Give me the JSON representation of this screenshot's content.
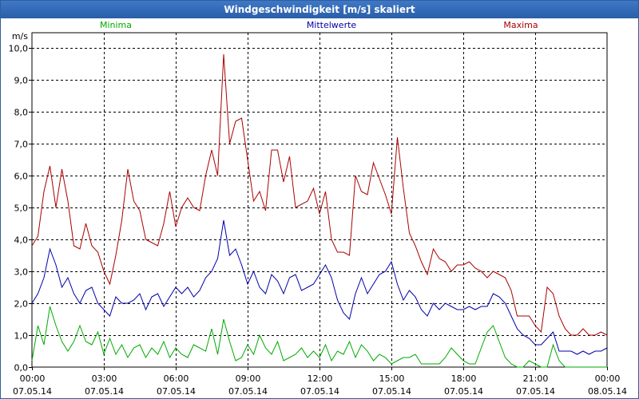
{
  "window": {
    "title": "Windgeschwindigkeit [m/s] skaliert"
  },
  "chart_data": {
    "type": "line",
    "title": "Windgeschwindigkeit [m/s] skaliert",
    "ylabel": "m/s",
    "ylim": [
      0,
      10
    ],
    "yticks": [
      "0,0",
      "1,0",
      "2,0",
      "3,0",
      "4,0",
      "5,0",
      "6,0",
      "7,0",
      "8,0",
      "9,0",
      "10,0"
    ],
    "xticks": [
      {
        "time": "00:00",
        "date": "07.05.14"
      },
      {
        "time": "03:00",
        "date": "07.05.14"
      },
      {
        "time": "06:00",
        "date": "07.05.14"
      },
      {
        "time": "09:00",
        "date": "07.05.14"
      },
      {
        "time": "12:00",
        "date": "07.05.14"
      },
      {
        "time": "15:00",
        "date": "07.05.14"
      },
      {
        "time": "18:00",
        "date": "07.05.14"
      },
      {
        "time": "21:00",
        "date": "07.05.14"
      },
      {
        "time": "00:00",
        "date": "08.05.14"
      }
    ],
    "x_hours": [
      0,
      0.25,
      0.5,
      0.75,
      1,
      1.25,
      1.5,
      1.75,
      2,
      2.25,
      2.5,
      2.75,
      3,
      3.25,
      3.5,
      3.75,
      4,
      4.25,
      4.5,
      4.75,
      5,
      5.25,
      5.5,
      5.75,
      6,
      6.25,
      6.5,
      6.75,
      7,
      7.25,
      7.5,
      7.75,
      8,
      8.25,
      8.5,
      8.75,
      9,
      9.25,
      9.5,
      9.75,
      10,
      10.25,
      10.5,
      10.75,
      11,
      11.25,
      11.5,
      11.75,
      12,
      12.25,
      12.5,
      12.75,
      13,
      13.25,
      13.5,
      13.75,
      14,
      14.25,
      14.5,
      14.75,
      15,
      15.25,
      15.5,
      15.75,
      16,
      16.25,
      16.5,
      16.75,
      17,
      17.25,
      17.5,
      17.75,
      18,
      18.25,
      18.5,
      18.75,
      19,
      19.25,
      19.5,
      19.75,
      20,
      20.25,
      20.5,
      20.75,
      21,
      21.25,
      21.5,
      21.75,
      22,
      22.25,
      22.5,
      22.75,
      23,
      23.25,
      23.5,
      23.75,
      24
    ],
    "series": [
      {
        "name": "Minima",
        "color": "#00aa00",
        "legend_pos": "left",
        "values": [
          0.2,
          1.3,
          0.7,
          1.9,
          1.3,
          0.8,
          0.5,
          0.8,
          1.3,
          0.8,
          0.7,
          1.1,
          0.4,
          0.9,
          0.4,
          0.7,
          0.3,
          0.6,
          0.7,
          0.3,
          0.6,
          0.4,
          0.8,
          0.3,
          0.6,
          0.4,
          0.3,
          0.7,
          0.6,
          0.5,
          1.2,
          0.4,
          1.5,
          0.8,
          0.2,
          0.3,
          0.7,
          0.4,
          1.0,
          0.6,
          0.4,
          0.8,
          0.2,
          0.3,
          0.4,
          0.6,
          0.3,
          0.5,
          0.3,
          0.7,
          0.2,
          0.5,
          0.4,
          0.8,
          0.3,
          0.7,
          0.5,
          0.2,
          0.4,
          0.3,
          0.1,
          0.2,
          0.3,
          0.3,
          0.4,
          0.1,
          0.1,
          0.1,
          0.1,
          0.3,
          0.6,
          0.4,
          0.2,
          0.1,
          0.1,
          0.6,
          1.1,
          1.3,
          0.8,
          0.3,
          0.1,
          0.0,
          0.0,
          0.2,
          0.1,
          0.0,
          0.0,
          0.7,
          0.2,
          0.0,
          0.0,
          0.0,
          0.0,
          0.0,
          0.0,
          0.0,
          0.0
        ]
      },
      {
        "name": "Mittelwerte",
        "color": "#0000aa",
        "legend_pos": "center",
        "values": [
          2.0,
          2.3,
          2.8,
          3.7,
          3.2,
          2.5,
          2.8,
          2.3,
          2.0,
          2.4,
          2.5,
          2.0,
          1.8,
          1.6,
          2.2,
          2.0,
          2.0,
          2.1,
          2.3,
          1.8,
          2.2,
          2.3,
          1.9,
          2.2,
          2.5,
          2.3,
          2.5,
          2.2,
          2.4,
          2.8,
          3.0,
          3.4,
          4.6,
          3.5,
          3.7,
          3.2,
          2.6,
          3.0,
          2.5,
          2.3,
          2.9,
          2.7,
          2.3,
          2.8,
          2.9,
          2.4,
          2.5,
          2.6,
          2.9,
          3.2,
          2.8,
          2.1,
          1.7,
          1.5,
          2.3,
          2.8,
          2.3,
          2.6,
          2.9,
          3.0,
          3.3,
          2.6,
          2.1,
          2.4,
          2.2,
          1.8,
          1.6,
          2.0,
          1.8,
          2.0,
          1.9,
          1.8,
          1.8,
          1.9,
          1.8,
          1.9,
          1.9,
          2.3,
          2.2,
          2.0,
          1.6,
          1.2,
          1.0,
          0.9,
          0.7,
          0.7,
          0.9,
          1.1,
          0.5,
          0.5,
          0.5,
          0.4,
          0.5,
          0.4,
          0.5,
          0.5,
          0.6
        ]
      },
      {
        "name": "Maxima",
        "color": "#aa0000",
        "legend_pos": "right",
        "values": [
          3.8,
          4.1,
          5.5,
          6.3,
          5.0,
          6.2,
          5.2,
          3.8,
          3.7,
          4.5,
          3.8,
          3.6,
          3.0,
          2.6,
          3.5,
          4.6,
          6.2,
          5.2,
          4.9,
          4.0,
          3.9,
          3.8,
          4.5,
          5.5,
          4.4,
          5.0,
          5.3,
          5.0,
          4.9,
          6.0,
          6.8,
          6.0,
          9.8,
          7.0,
          7.7,
          7.8,
          6.5,
          5.2,
          5.5,
          4.9,
          6.8,
          6.8,
          5.8,
          6.6,
          5.0,
          5.1,
          5.2,
          5.6,
          4.8,
          5.5,
          4.0,
          3.6,
          3.6,
          3.5,
          6.0,
          5.5,
          5.4,
          6.4,
          5.9,
          5.4,
          4.8,
          7.2,
          5.6,
          4.2,
          3.8,
          3.3,
          2.9,
          3.7,
          3.4,
          3.3,
          3.0,
          3.2,
          3.2,
          3.3,
          3.1,
          3.0,
          2.8,
          3.0,
          2.9,
          2.8,
          2.4,
          1.6,
          1.6,
          1.6,
          1.3,
          1.1,
          2.5,
          2.3,
          1.6,
          1.2,
          1.0,
          1.0,
          1.2,
          1.0,
          1.0,
          1.1,
          1.0
        ]
      }
    ]
  }
}
